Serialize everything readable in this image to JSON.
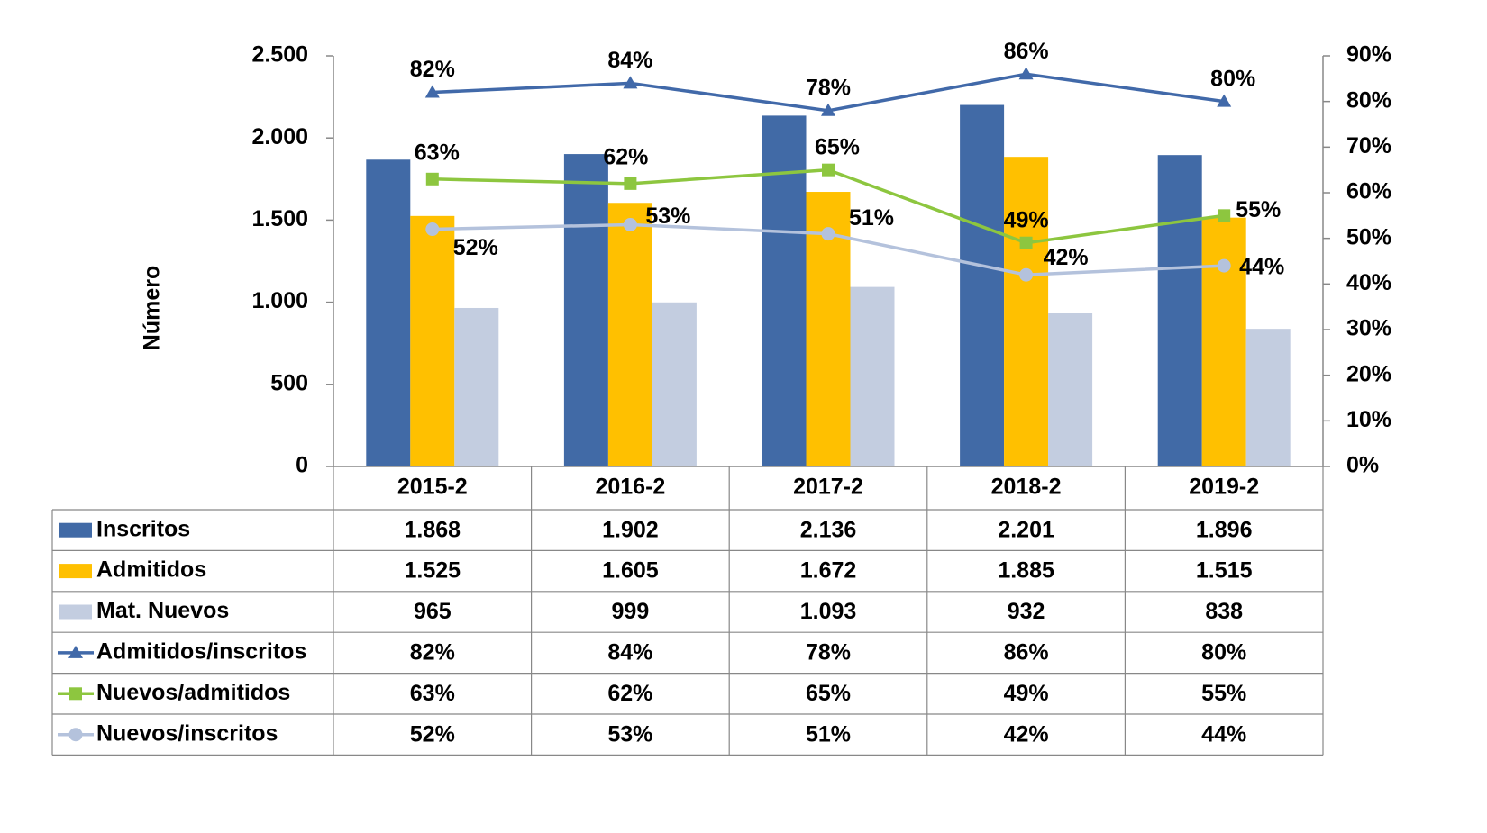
{
  "chart_data": {
    "type": "bar-line-table",
    "y_label": "Número",
    "categories": [
      "2015-2",
      "2016-2",
      "2017-2",
      "2018-2",
      "2019-2"
    ],
    "ylim": [
      0,
      2500
    ],
    "yticks": [
      0,
      500,
      {
        "value": 1000,
        "label": "1.000"
      },
      {
        "value": 1500,
        "label": "1.500"
      },
      {
        "value": 2000,
        "label": "2.000"
      },
      {
        "value": 2500,
        "label": "2.500"
      }
    ],
    "y2lim": [
      0,
      90
    ],
    "y2ticks": [
      {
        "value": 0,
        "label": "0%"
      },
      {
        "value": 10,
        "label": "10%"
      },
      {
        "value": 20,
        "label": "20%"
      },
      {
        "value": 30,
        "label": "30%"
      },
      {
        "value": 40,
        "label": "40%"
      },
      {
        "value": 50,
        "label": "50%"
      },
      {
        "value": 60,
        "label": "60%"
      },
      {
        "value": 70,
        "label": "70%"
      },
      {
        "value": 80,
        "label": "80%"
      },
      {
        "value": 90,
        "label": "90%"
      }
    ],
    "series": [
      {
        "name": "Inscritos",
        "kind": "bar",
        "color": "#416aa6",
        "values": [
          1868,
          1902,
          2136,
          2201,
          1896
        ],
        "value_labels": [
          "1.868",
          "1.902",
          "2.136",
          "2.201",
          "1.896"
        ]
      },
      {
        "name": "Admitidos",
        "kind": "bar",
        "color": "#ffc000",
        "values": [
          1525,
          1605,
          1672,
          1885,
          1515
        ],
        "value_labels": [
          "1.525",
          "1.605",
          "1.672",
          "1.885",
          "1.515"
        ]
      },
      {
        "name": "Mat. Nuevos",
        "kind": "bar",
        "color": "#c3cde0",
        "values": [
          965,
          999,
          1093,
          932,
          838
        ],
        "value_labels": [
          "965",
          "999",
          "1.093",
          "932",
          "838"
        ]
      },
      {
        "name": "Admitidos/inscritos",
        "kind": "line",
        "axis": "y2",
        "marker": "triangle",
        "color": "#4169a9",
        "values": [
          82,
          84,
          78,
          86,
          80
        ],
        "value_labels": [
          "82%",
          "84%",
          "78%",
          "86%",
          "80%"
        ]
      },
      {
        "name": "Nuevos/admitidos",
        "kind": "line",
        "axis": "y2",
        "marker": "square",
        "color": "#8dc63f",
        "values": [
          63,
          62,
          65,
          49,
          55
        ],
        "value_labels": [
          "63%",
          "62%",
          "65%",
          "49%",
          "55%"
        ]
      },
      {
        "name": "Nuevos/inscritos",
        "kind": "line",
        "axis": "y2",
        "marker": "circle",
        "color": "#b4c2dc",
        "values": [
          52,
          53,
          51,
          42,
          44
        ],
        "value_labels": [
          "52%",
          "53%",
          "51%",
          "42%",
          "44%"
        ]
      }
    ]
  }
}
